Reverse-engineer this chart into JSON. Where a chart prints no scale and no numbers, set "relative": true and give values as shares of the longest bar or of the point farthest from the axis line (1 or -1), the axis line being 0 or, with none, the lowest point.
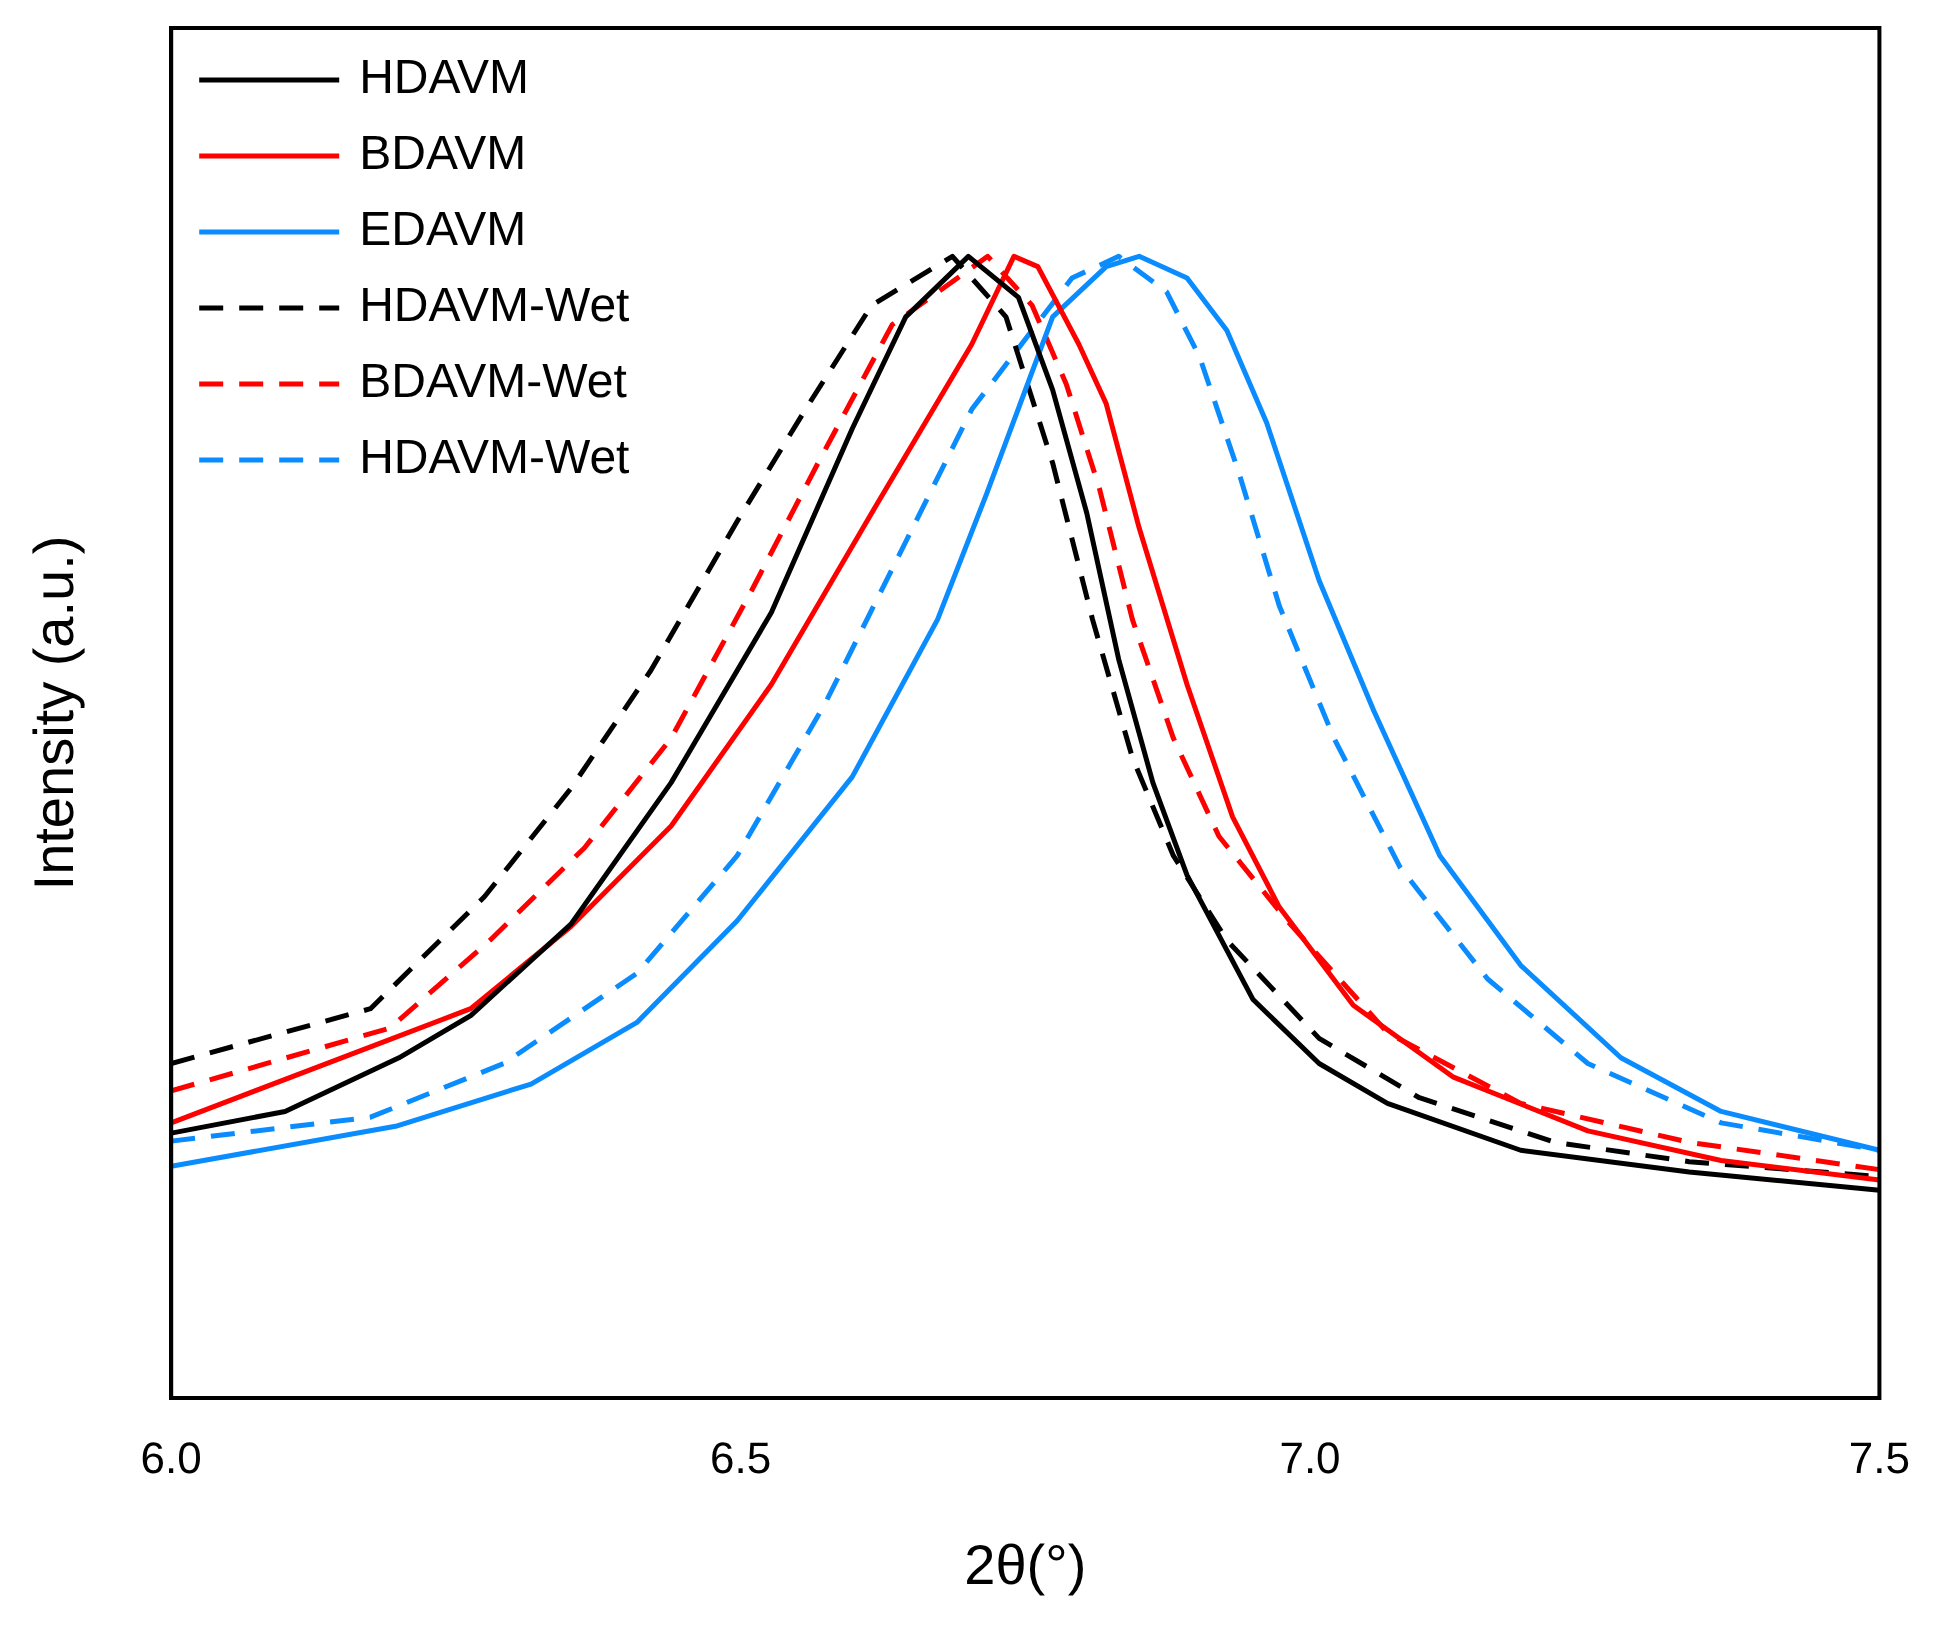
{
  "chart_data": {
    "type": "line",
    "xlabel": "2θ(°)",
    "ylabel": "Intensity (a.u.)",
    "relative": true,
    "xlim": [
      6.0,
      7.5
    ],
    "xticks": [
      {
        "value": 6,
        "label": "6.0"
      },
      {
        "value": 6.5,
        "label": "6.5"
      },
      {
        "value": 7,
        "label": "7.0"
      },
      {
        "value": 7.5,
        "label": "7.5"
      }
    ],
    "grid": false,
    "legend": "top left",
    "marker": "none",
    "series": [
      {
        "name": "HDAVM",
        "color": "#000000",
        "line_style": "solid",
        "x": [
          6.0,
          6.1,
          6.2,
          6.263,
          6.351,
          6.439,
          6.527,
          6.598,
          6.645,
          6.7,
          6.744,
          6.774,
          6.804,
          6.832,
          6.862,
          6.892,
          6.95,
          7.008,
          7.068,
          7.185,
          7.333,
          7.5
        ],
        "values": [
          0.232,
          0.251,
          0.298,
          0.335,
          0.415,
          0.539,
          0.688,
          0.849,
          0.947,
          1.0,
          0.964,
          0.883,
          0.775,
          0.647,
          0.539,
          0.458,
          0.349,
          0.293,
          0.258,
          0.217,
          0.198,
          0.182
        ]
      },
      {
        "name": "BDAVM",
        "color": "#ff0000",
        "line_style": "solid",
        "x": [
          6.0,
          6.263,
          6.351,
          6.439,
          6.527,
          6.615,
          6.703,
          6.74,
          6.761,
          6.797,
          6.821,
          6.85,
          6.892,
          6.932,
          6.973,
          7.038,
          7.126,
          7.244,
          7.361,
          7.5
        ],
        "values": [
          0.241,
          0.341,
          0.413,
          0.501,
          0.625,
          0.775,
          0.923,
          1.0,
          0.991,
          0.923,
          0.871,
          0.762,
          0.625,
          0.509,
          0.43,
          0.344,
          0.281,
          0.234,
          0.208,
          0.191
        ]
      },
      {
        "name": "EDAVM",
        "color": "#0a8cff",
        "line_style": "solid",
        "x": [
          6.0,
          6.197,
          6.316,
          6.409,
          6.497,
          6.598,
          6.673,
          6.716,
          6.774,
          6.821,
          6.85,
          6.892,
          6.927,
          6.962,
          7.008,
          7.056,
          7.114,
          7.185,
          7.273,
          7.361,
          7.5
        ],
        "values": [
          0.203,
          0.238,
          0.275,
          0.329,
          0.418,
          0.544,
          0.682,
          0.792,
          0.947,
          0.991,
          1.0,
          0.981,
          0.935,
          0.854,
          0.716,
          0.602,
          0.475,
          0.379,
          0.298,
          0.251,
          0.217
        ]
      },
      {
        "name": "HDAVM-Wet",
        "color": "#000000",
        "line_style": "dashed",
        "x": [
          6.0,
          6.175,
          6.275,
          6.351,
          6.421,
          6.497,
          6.557,
          6.615,
          6.686,
          6.733,
          6.774,
          6.809,
          6.844,
          6.88,
          6.927,
          7.008,
          7.096,
          7.215,
          7.333,
          7.5
        ],
        "values": [
          0.293,
          0.341,
          0.439,
          0.534,
          0.637,
          0.768,
          0.866,
          0.957,
          1.0,
          0.947,
          0.819,
          0.682,
          0.561,
          0.475,
          0.401,
          0.315,
          0.263,
          0.224,
          0.207,
          0.194
        ]
      },
      {
        "name": "BDAVM-Wet",
        "color": "#ff0000",
        "line_style": "dashed",
        "x": [
          6.0,
          6.192,
          6.28,
          6.363,
          6.439,
          6.509,
          6.568,
          6.633,
          6.717,
          6.756,
          6.786,
          6.815,
          6.844,
          6.88,
          6.92,
          6.98,
          7.068,
          7.185,
          7.333,
          7.5
        ],
        "values": [
          0.269,
          0.324,
          0.401,
          0.482,
          0.578,
          0.706,
          0.819,
          0.94,
          1.0,
          0.957,
          0.888,
          0.797,
          0.682,
          0.578,
          0.492,
          0.418,
          0.32,
          0.258,
          0.224,
          0.2
        ]
      },
      {
        "name": "HDAVM-Wet",
        "color": "#0a8cff",
        "line_style": "dashed",
        "x": [
          6.0,
          6.175,
          6.292,
          6.409,
          6.497,
          6.574,
          6.645,
          6.703,
          6.791,
          6.832,
          6.874,
          6.903,
          6.938,
          6.973,
          7.021,
          7.079,
          7.156,
          7.244,
          7.361,
          7.5
        ],
        "values": [
          0.225,
          0.246,
          0.293,
          0.372,
          0.475,
          0.608,
          0.75,
          0.866,
          0.981,
          1.0,
          0.969,
          0.912,
          0.809,
          0.694,
          0.578,
          0.465,
          0.367,
          0.293,
          0.241,
          0.217
        ]
      }
    ]
  }
}
